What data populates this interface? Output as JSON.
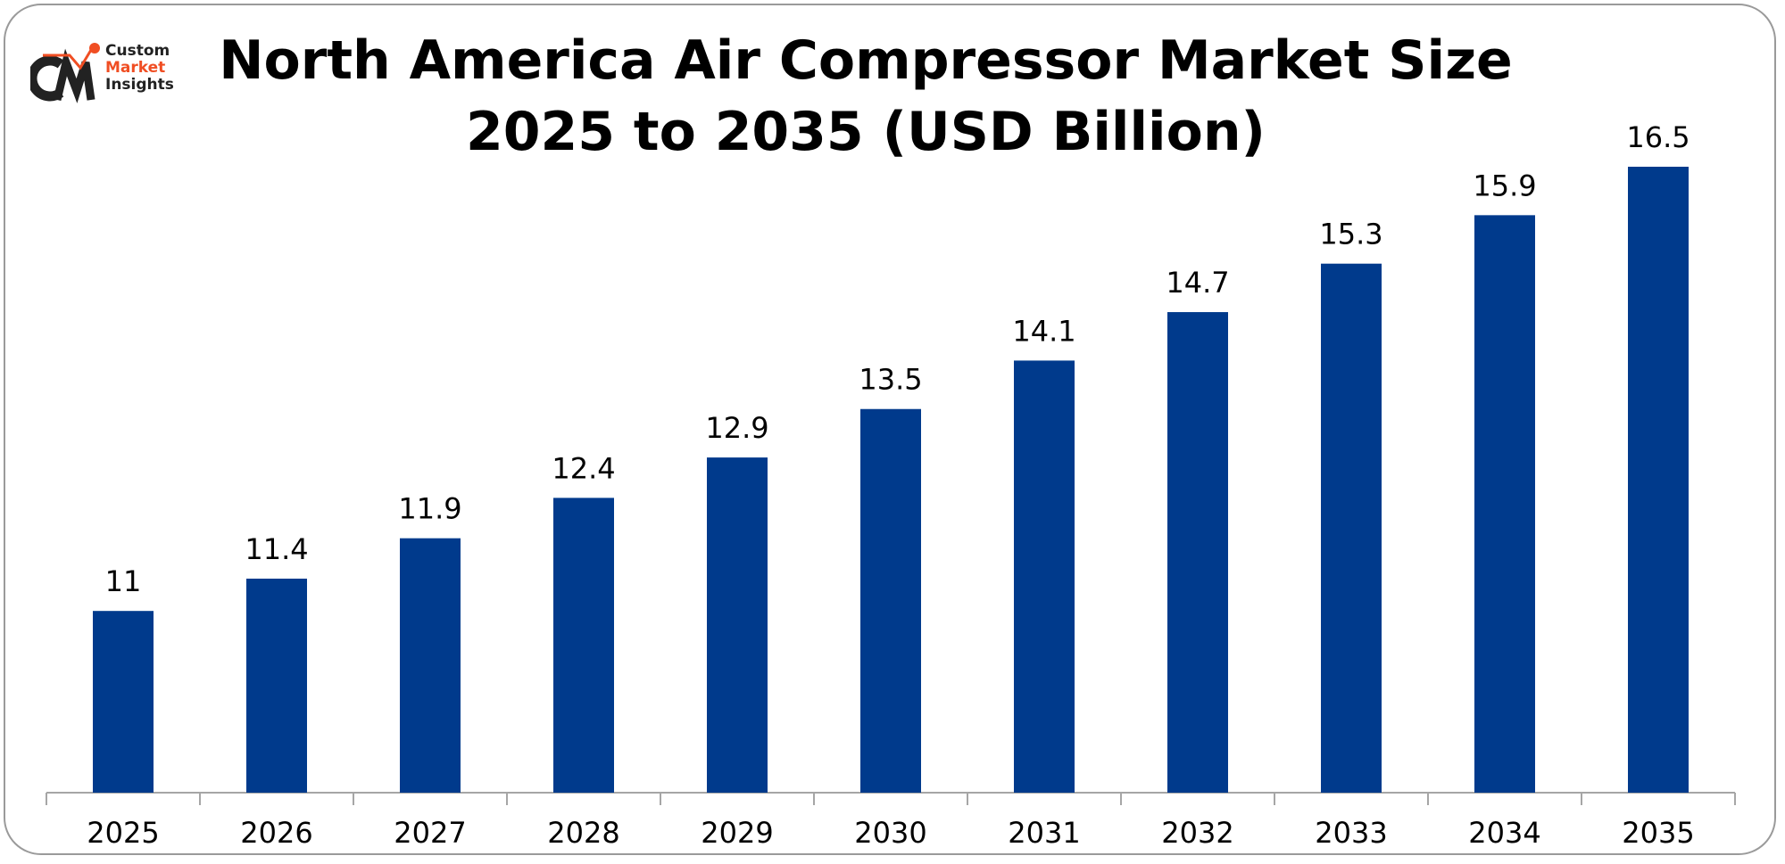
{
  "logo": {
    "line1": "Custom",
    "line2": "Market",
    "line3": "Insights",
    "brand_text": "CMI"
  },
  "chart_data": {
    "type": "bar",
    "title": "North America Air Compressor Market Size",
    "subtitle": "2025 to 2035 (USD Billion)",
    "categories": [
      "2025",
      "2026",
      "2027",
      "2028",
      "2029",
      "2030",
      "2031",
      "2032",
      "2033",
      "2034",
      "2035"
    ],
    "values": [
      11,
      11.4,
      11.9,
      12.4,
      12.9,
      13.5,
      14.1,
      14.7,
      15.3,
      15.9,
      16.5
    ],
    "value_labels": [
      "11",
      "11.4",
      "11.9",
      "12.4",
      "12.9",
      "13.5",
      "14.1",
      "14.7",
      "15.3",
      "15.9",
      "16.5"
    ],
    "xlabel": "",
    "ylabel": "",
    "ylim": [
      8.75,
      16.5
    ],
    "grid": false,
    "legend": "none",
    "bar_color": "#003A8C",
    "axis_color": "#A6A6A6"
  }
}
